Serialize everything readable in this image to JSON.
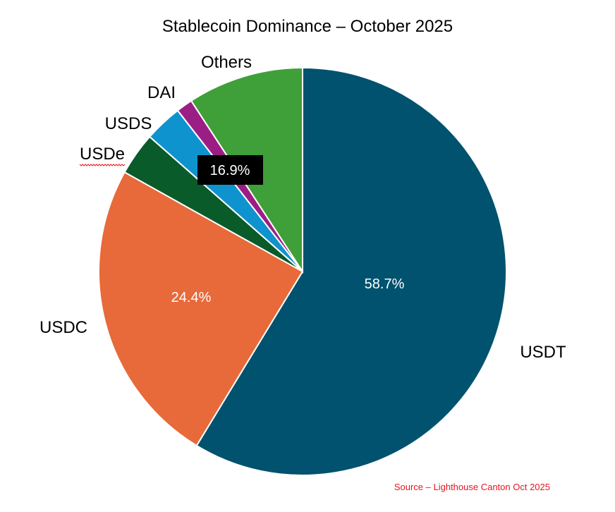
{
  "chart_data": {
    "type": "pie",
    "title": "Stablecoin Dominance – October 2025",
    "slices": [
      {
        "label": "USDT",
        "value": 58.7,
        "color": "#00526f",
        "pct_label": "58.7%"
      },
      {
        "label": "USDC",
        "value": 24.4,
        "color": "#e8693a",
        "pct_label": "24.4%"
      },
      {
        "label": "USDe",
        "value": 3.4,
        "color": "#0a5b2a",
        "pct_label": ""
      },
      {
        "label": "USDS",
        "value": 3.0,
        "color": "#0f93cf",
        "pct_label": ""
      },
      {
        "label": "DAI",
        "value": 1.3,
        "color": "#9b1e85",
        "pct_label": ""
      },
      {
        "label": "Others",
        "value": 9.2,
        "color": "#3f9f38",
        "pct_label": ""
      }
    ],
    "combined_label": {
      "text": "16.9%",
      "covers": [
        "USDe",
        "USDS",
        "DAI",
        "Others"
      ],
      "box_color": "#000000"
    },
    "legend": "none"
  },
  "source": "Source – Lighthouse Canton Oct 2025",
  "colors": {
    "source_text": "#e8141c",
    "slice_border": "#ffffff"
  }
}
